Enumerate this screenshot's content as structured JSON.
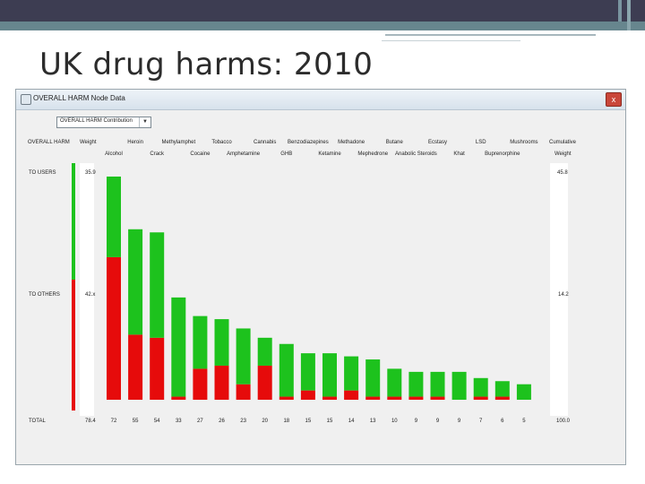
{
  "slide": {
    "title": "UK drug harms: 2010"
  },
  "window": {
    "title": "OVERALL HARM Node Data",
    "close_label": "x",
    "dropdown_value": "OVERALL HARM Contribution"
  },
  "table": {
    "corner_label": "OVERALL HARM",
    "weight_header": "Weight",
    "cumulative_header_1": "Cumulative",
    "cumulative_header_2": "Weight",
    "rows": [
      {
        "label": "TO USERS",
        "weight": "35.9",
        "cumulative": "45.8"
      },
      {
        "label": "TO OTHERS",
        "weight": "42.x",
        "cumulative": "14.2"
      }
    ],
    "total_label": "TOTAL",
    "total_weight": "78.4",
    "total_cumulative": "100.0"
  },
  "colors": {
    "to_users": "#1dc21d",
    "to_others": "#e60b0b",
    "bar_green": "#1dc21d",
    "bar_red": "#e60b0b"
  },
  "chart_data": {
    "type": "bar",
    "stacked": true,
    "categories": [
      "Alcohol",
      "Heroin",
      "Crack",
      "Methylamphet",
      "Cocaine",
      "Tobacco",
      "Amphetamine",
      "Cannabis",
      "GHB",
      "Benzodiazepines",
      "Ketamine",
      "Methadone",
      "Mephedrone",
      "Butane",
      "Anabolic Steroids",
      "Ecstasy",
      "Khat",
      "LSD",
      "Buprenorphine",
      "Mushrooms"
    ],
    "series": [
      {
        "name": "TO OTHERS",
        "values": [
          46,
          21,
          20,
          1,
          10,
          11,
          5,
          11,
          1,
          3,
          1,
          3,
          1,
          1,
          1,
          1,
          0,
          1,
          1,
          0
        ]
      },
      {
        "name": "TO USERS",
        "values": [
          26,
          34,
          34,
          32,
          17,
          15,
          18,
          9,
          17,
          12,
          14,
          11,
          12,
          9,
          8,
          8,
          9,
          6,
          5,
          5
        ]
      }
    ],
    "totals": [
      72,
      55,
      54,
      33,
      27,
      26,
      23,
      20,
      18,
      15,
      15,
      14,
      13,
      10,
      9,
      9,
      9,
      7,
      6,
      5
    ],
    "ylim": [
      0,
      72
    ]
  }
}
